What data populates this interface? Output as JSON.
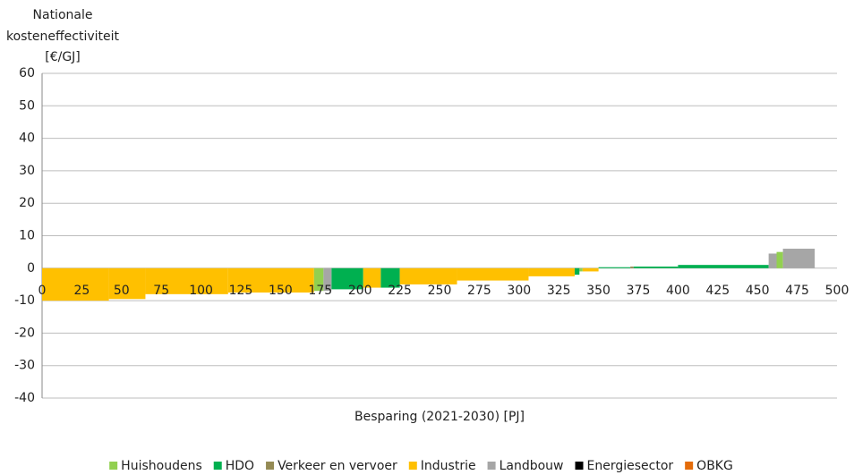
{
  "chart_data": {
    "type": "cost-curve",
    "ytitle": [
      "Nationale",
      "kosteneffectiviteit",
      "[€/GJ]"
    ],
    "xlabel": "Besparing (2021-2030) [PJ]",
    "xlim": [
      0,
      500
    ],
    "xticks": [
      0,
      25,
      50,
      75,
      100,
      125,
      150,
      175,
      200,
      225,
      250,
      275,
      300,
      325,
      350,
      375,
      400,
      425,
      450,
      475,
      500
    ],
    "ylim": [
      -40,
      60
    ],
    "yticks": [
      -40,
      -30,
      -20,
      -10,
      0,
      10,
      20,
      30,
      40,
      50,
      60
    ],
    "grid": true,
    "legend": "bottom",
    "series": [
      {
        "name": "Huishoudens",
        "color": "#92d050",
        "x": [
          [
            171,
            177
          ],
          [
            338,
            340
          ],
          [
            462,
            466
          ]
        ],
        "values": [
          -7,
          -1,
          5
        ]
      },
      {
        "name": "HDO",
        "color": "#00b050",
        "x": [
          [
            182,
            202
          ],
          [
            213,
            225
          ],
          [
            335,
            338
          ],
          [
            350,
            370
          ],
          [
            372,
            400
          ],
          [
            400,
            457
          ]
        ],
        "values": [
          -6.5,
          -6,
          -2,
          0.3,
          0.5,
          1
        ]
      },
      {
        "name": "Verkeer en vervoer",
        "color": "#948a54",
        "x": [
          [
            370,
            372
          ]
        ],
        "values": [
          0.5
        ]
      },
      {
        "name": "Industrie",
        "color": "#ffc000",
        "x": [
          [
            0,
            42
          ],
          [
            42,
            65
          ],
          [
            65,
            117
          ],
          [
            117,
            171
          ],
          [
            202,
            213
          ],
          [
            225,
            261
          ],
          [
            261,
            306
          ],
          [
            306,
            335
          ],
          [
            340,
            350
          ]
        ],
        "values": [
          -10,
          -9.5,
          -8,
          -7.5,
          -6,
          -5,
          -3.8,
          -2.5,
          -1
        ]
      },
      {
        "name": "Landbouw",
        "color": "#a6a6a6",
        "x": [
          [
            177,
            182
          ],
          [
            457,
            462
          ],
          [
            466,
            486
          ]
        ],
        "values": [
          -7,
          4.5,
          6
        ]
      },
      {
        "name": "Energiesector",
        "color": "#000000",
        "x": [],
        "values": []
      },
      {
        "name": "OBKG",
        "color": "#e46c0a",
        "x": [],
        "values": []
      }
    ]
  }
}
